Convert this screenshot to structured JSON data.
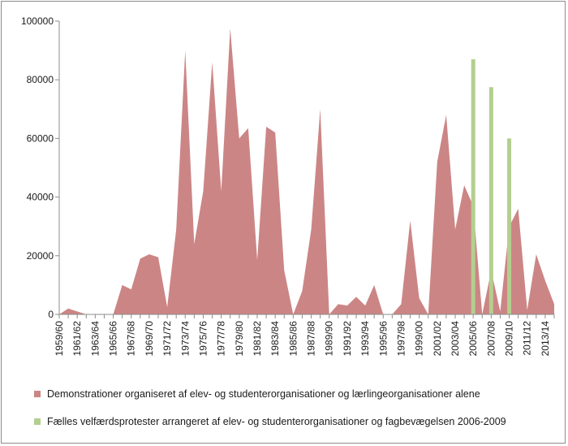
{
  "chart_data": {
    "type": "area",
    "categories": [
      "1959/60",
      "1960/61",
      "1961/62",
      "1962/63",
      "1963/64",
      "1964/65",
      "1965/66",
      "1966/67",
      "1967/68",
      "1968/69",
      "1969/70",
      "1970/71",
      "1971/72",
      "1972/73",
      "1973/74",
      "1974/75",
      "1975/76",
      "1976/77",
      "1977/78",
      "1978/79",
      "1979/80",
      "1980/81",
      "1981/82",
      "1982/83",
      "1983/84",
      "1984/85",
      "1985/86",
      "1986/87",
      "1987/88",
      "1988/89",
      "1989/90",
      "1990/91",
      "1991/92",
      "1992/93",
      "1993/94",
      "1994/95",
      "1995/96",
      "1996/97",
      "1997/98",
      "1998/99",
      "1999/00",
      "2000/01",
      "2001/02",
      "2002/03",
      "2003/04",
      "2004/05",
      "2005/06",
      "2006/07",
      "2007/08",
      "2008/09",
      "2009/10",
      "2010/11",
      "2011/12",
      "2012/13",
      "2013/14",
      "2014/15"
    ],
    "tick_labels": [
      "1959/60",
      "1961/62",
      "1963/64",
      "1965/66",
      "1967/68",
      "1969/70",
      "1971/72",
      "1973/74",
      "1975/76",
      "1977/78",
      "1979/80",
      "1981/82",
      "1983/84",
      "1985/86",
      "1987/88",
      "1989/90",
      "1991/92",
      "1993/94",
      "1995/96",
      "1997/98",
      "1999/00",
      "2001/02",
      "2003/04",
      "2005/06",
      "2007/08",
      "2009/10",
      "2011/12",
      "2013/14"
    ],
    "ylim": [
      0,
      100000
    ],
    "yticks": [
      "0",
      "20000",
      "40000",
      "60000",
      "80000",
      "100000"
    ],
    "legend_position": "bottom",
    "series": [
      {
        "name": "Demonstrationer organiseret af elev- og studenterorganisationer og lærlingeorganisationer alene",
        "type": "area",
        "color": "#cc8585",
        "values": [
          0,
          2000,
          1000,
          0,
          0,
          0,
          0,
          10000,
          8500,
          19000,
          20500,
          19500,
          2500,
          29000,
          90000,
          24000,
          42000,
          86000,
          42000,
          97500,
          60000,
          63500,
          18500,
          64000,
          62000,
          15000,
          0,
          8000,
          29000,
          70000,
          0,
          3500,
          3000,
          6000,
          3000,
          10000,
          0,
          0,
          3500,
          32000,
          5500,
          0,
          52000,
          68000,
          29000,
          44000,
          37000,
          0,
          15000,
          1000,
          30000,
          36000,
          1500,
          20500,
          11500,
          3500
        ]
      },
      {
        "name": "Fælles velfærdsprotester arrangeret af elev- og studenterorganisationer og fagbevægelsen 2006-2009",
        "type": "bar",
        "color": "#b3cf8f",
        "points": [
          {
            "category": "2005/06",
            "value": 87000
          },
          {
            "category": "2007/08",
            "value": 77500
          },
          {
            "category": "2009/10",
            "value": 60000
          }
        ]
      }
    ]
  }
}
